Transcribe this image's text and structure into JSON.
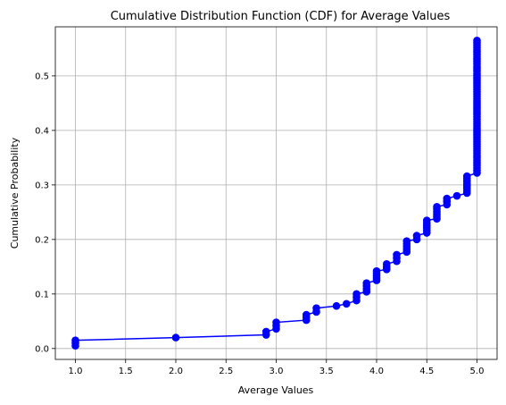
{
  "chart_data": {
    "type": "line",
    "title": "Cumulative Distribution Function (CDF) for Average Values",
    "xlabel": "Average Values",
    "ylabel": "Cumulative Probability",
    "xlim": [
      0.8,
      5.2
    ],
    "ylim": [
      -0.02,
      0.59
    ],
    "xticks": [
      "1.0",
      "1.5",
      "2.0",
      "2.5",
      "3.0",
      "3.5",
      "4.0",
      "4.5",
      "5.0"
    ],
    "yticks": [
      "0.0",
      "0.1",
      "0.2",
      "0.3",
      "0.4",
      "0.5"
    ],
    "grid": true,
    "legend": "none",
    "series": [
      {
        "color": "#0000ff",
        "marker": "circle",
        "points": [
          [
            1.0,
            0.005
          ],
          [
            1.0,
            0.015
          ],
          [
            2.0,
            0.02
          ],
          [
            2.9,
            0.025
          ],
          [
            2.9,
            0.031
          ],
          [
            3.0,
            0.036
          ],
          [
            3.0,
            0.048
          ],
          [
            3.3,
            0.052
          ],
          [
            3.3,
            0.062
          ],
          [
            3.4,
            0.067
          ],
          [
            3.4,
            0.074
          ],
          [
            3.6,
            0.078
          ],
          [
            3.7,
            0.082
          ],
          [
            3.8,
            0.088
          ],
          [
            3.8,
            0.1
          ],
          [
            3.9,
            0.104
          ],
          [
            3.9,
            0.12
          ],
          [
            4.0,
            0.125
          ],
          [
            4.0,
            0.142
          ],
          [
            4.1,
            0.145
          ],
          [
            4.1,
            0.155
          ],
          [
            4.2,
            0.16
          ],
          [
            4.2,
            0.172
          ],
          [
            4.3,
            0.177
          ],
          [
            4.3,
            0.197
          ],
          [
            4.4,
            0.2
          ],
          [
            4.4,
            0.207
          ],
          [
            4.5,
            0.212
          ],
          [
            4.5,
            0.235
          ],
          [
            4.6,
            0.238
          ],
          [
            4.6,
            0.26
          ],
          [
            4.7,
            0.264
          ],
          [
            4.7,
            0.275
          ],
          [
            4.8,
            0.28
          ],
          [
            4.9,
            0.285
          ],
          [
            4.9,
            0.316
          ],
          [
            5.0,
            0.322
          ],
          [
            5.0,
            0.35
          ],
          [
            5.0,
            0.4
          ],
          [
            5.0,
            0.45
          ],
          [
            5.0,
            0.5
          ],
          [
            5.0,
            0.565
          ]
        ]
      }
    ]
  }
}
